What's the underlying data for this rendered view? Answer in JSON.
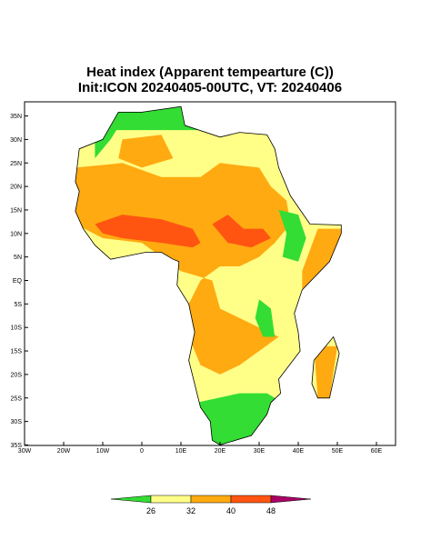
{
  "title": "Heat index (Apparent tempearture (C))",
  "subtitle": "Init:ICON 20240405-00UTC, VT: 20240406",
  "map": {
    "lon_ticks": [
      {
        "value": -30,
        "label": "30W"
      },
      {
        "value": -20,
        "label": "20W"
      },
      {
        "value": -10,
        "label": "10W"
      },
      0,
      {
        "value": 10,
        "label": "10E"
      },
      {
        "value": 20,
        "label": "20E"
      },
      {
        "value": 30,
        "label": "30E"
      },
      {
        "value": 40,
        "label": "40E"
      },
      {
        "value": 50,
        "label": "50E"
      },
      {
        "value": 60,
        "label": "60E"
      }
    ],
    "lat_ticks": [
      {
        "value": 35,
        "label": "35N"
      },
      {
        "value": 30,
        "label": "30N"
      },
      {
        "value": 25,
        "label": "25N"
      },
      {
        "value": 20,
        "label": "20N"
      },
      {
        "value": 15,
        "label": "15N"
      },
      {
        "value": 10,
        "label": "10N"
      },
      {
        "value": 5,
        "label": "5N"
      },
      {
        "value": 0,
        "label": "EQ"
      },
      {
        "value": -5,
        "label": "5S"
      },
      {
        "value": -10,
        "label": "10S"
      },
      {
        "value": -15,
        "label": "15S"
      },
      {
        "value": -20,
        "label": "20S"
      },
      {
        "value": -25,
        "label": "25S"
      },
      {
        "value": -30,
        "label": "30S"
      },
      {
        "value": -35,
        "label": "35S"
      }
    ]
  },
  "colorbar": {
    "levels": [
      26,
      32,
      40,
      48
    ],
    "colors": [
      "#33dd33",
      "#ffff88",
      "#ffaa11",
      "#ff5511",
      "#aa0066"
    ]
  }
}
